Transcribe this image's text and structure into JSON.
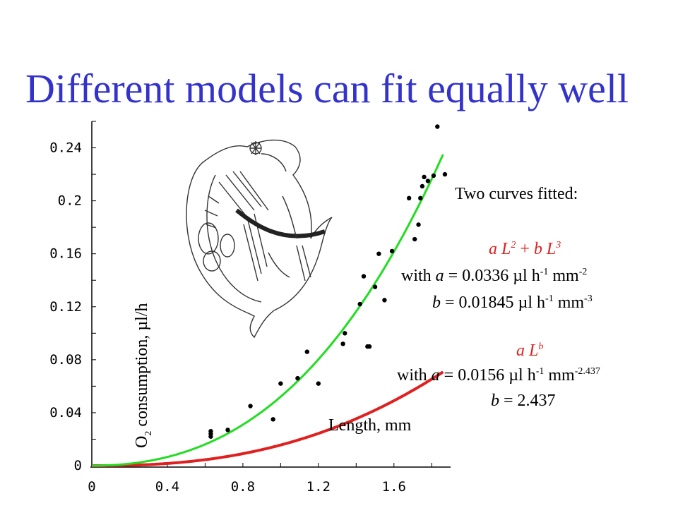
{
  "slide": {
    "title": "Different models can fit equally well",
    "legend_heading": "Two curves fitted:",
    "model1": {
      "formula_a": "a",
      "formula_L1": " L",
      "formula_exp1": "2",
      "formula_mid": " + ",
      "formula_b": "b",
      "formula_L2": " L",
      "formula_exp2": "3",
      "line1_pre": "with ",
      "line1_var": "a",
      "line1_val": " = 0.0336 µl h",
      "line1_sup1": "-1",
      "line1_unit": " mm",
      "line1_sup2": "-2",
      "line2_var": "b",
      "line2_val": " = 0.01845 µl h",
      "line2_sup1": "-1",
      "line2_unit": " mm",
      "line2_sup2": "-3"
    },
    "model2": {
      "formula_a": "a",
      "formula_L": " L",
      "formula_exp": "b",
      "line1_pre": "with ",
      "line1_var": "a",
      "line1_val": " = 0.0156 µl h",
      "line1_sup1": "-1",
      "line1_unit": " mm",
      "line1_sup2": "-2.437",
      "line2_var": "b",
      "line2_val": " = 2.437"
    },
    "ylabel_main": "O",
    "ylabel_sub": "2",
    "ylabel_rest": " consumption, µl/h",
    "xlabel": "Length, mm"
  },
  "colors": {
    "title": "#3333cc",
    "curve_power": "#e02020",
    "curve_poly": "#22dd22",
    "points": "#000000"
  },
  "chart_data": {
    "type": "scatter",
    "xlim": [
      0,
      1.9
    ],
    "ylim": [
      0,
      0.26
    ],
    "x_ticks": [
      "0",
      "0.4",
      "0.8",
      "1.2",
      "1.6"
    ],
    "y_ticks": [
      "0",
      "0.04",
      "0.08",
      "0.12",
      "0.16",
      "0.2",
      "0.24"
    ],
    "points": [
      [
        0.63,
        0.026
      ],
      [
        0.63,
        0.024
      ],
      [
        0.63,
        0.022
      ],
      [
        0.72,
        0.027
      ],
      [
        0.84,
        0.045
      ],
      [
        0.96,
        0.035
      ],
      [
        1.0,
        0.062
      ],
      [
        1.09,
        0.066
      ],
      [
        1.14,
        0.086
      ],
      [
        1.2,
        0.062
      ],
      [
        1.33,
        0.092
      ],
      [
        1.34,
        0.1
      ],
      [
        1.46,
        0.09
      ],
      [
        1.42,
        0.122
      ],
      [
        1.44,
        0.143
      ],
      [
        1.47,
        0.09
      ],
      [
        1.5,
        0.135
      ],
      [
        1.52,
        0.16
      ],
      [
        1.55,
        0.125
      ],
      [
        1.59,
        0.162
      ],
      [
        1.68,
        0.202
      ],
      [
        1.71,
        0.171
      ],
      [
        1.73,
        0.182
      ],
      [
        1.74,
        0.202
      ],
      [
        1.75,
        0.211
      ],
      [
        1.76,
        0.218
      ],
      [
        1.78,
        0.215
      ],
      [
        1.81,
        0.219
      ],
      [
        1.83,
        0.256
      ],
      [
        1.87,
        0.22
      ]
    ],
    "series": [
      {
        "type": "line",
        "formula": "a L^2 + b L^3",
        "a": 0.0336,
        "b": 0.01845
      },
      {
        "type": "line",
        "formula": "a L^b",
        "a": 0.0156,
        "b": 2.437
      }
    ]
  }
}
